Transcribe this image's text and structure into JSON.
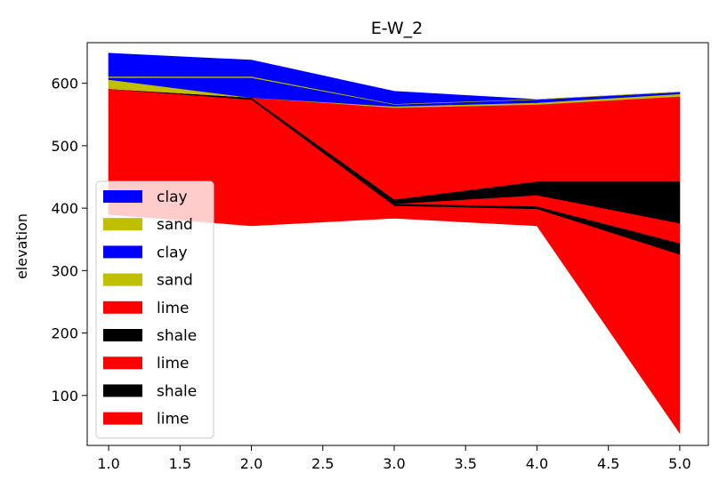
{
  "chart_data": {
    "type": "area",
    "title": "E-W_2",
    "xlabel": "",
    "ylabel": "elevation",
    "xlim": [
      0.85,
      5.2
    ],
    "ylim": [
      20,
      665
    ],
    "x_ticks": [
      1.0,
      1.5,
      2.0,
      2.5,
      3.0,
      3.5,
      4.0,
      4.5,
      5.0
    ],
    "x_tick_labels": [
      "1.0",
      "1.5",
      "2.0",
      "2.5",
      "3.0",
      "3.5",
      "4.0",
      "4.5",
      "5.0"
    ],
    "y_ticks": [
      100,
      200,
      300,
      400,
      500,
      600
    ],
    "y_tick_labels": [
      "100",
      "200",
      "300",
      "400",
      "500",
      "600"
    ],
    "grid": false,
    "legend_position": "lower-left",
    "x": [
      1.0,
      2.0,
      3.0,
      4.0,
      5.0
    ],
    "series": [
      {
        "name": "clay",
        "color": "#0000ff",
        "top": [
          648,
          637,
          587,
          574,
          586
        ],
        "bottom": [
          610,
          610,
          566,
          574,
          586
        ]
      },
      {
        "name": "sand",
        "color": "#bfbf00",
        "top": [
          610,
          610,
          566,
          574,
          586
        ],
        "bottom": [
          608,
          608,
          565,
          573,
          585
        ]
      },
      {
        "name": "clay",
        "color": "#0000ff",
        "top": [
          608,
          608,
          565,
          573,
          585
        ],
        "bottom": [
          605,
          576,
          562,
          568,
          582
        ]
      },
      {
        "name": "sand",
        "color": "#bfbf00",
        "top": [
          605,
          576,
          562,
          568,
          582
        ],
        "bottom": [
          590,
          576,
          560,
          565,
          578
        ]
      },
      {
        "name": "lime",
        "color": "#ff0000",
        "top": [
          590,
          576,
          560,
          565,
          578
        ],
        "bottom": [
          590,
          576,
          413,
          442,
          442
        ]
      },
      {
        "name": "shale",
        "color": "#000000",
        "top": [
          590,
          576,
          413,
          442,
          442
        ],
        "bottom": [
          590,
          576,
          406,
          420,
          375
        ]
      },
      {
        "name": "lime",
        "color": "#ff0000",
        "top": [
          590,
          576,
          406,
          420,
          375
        ],
        "bottom": [
          590,
          576,
          406,
          402,
          343
        ]
      },
      {
        "name": "shale",
        "color": "#000000",
        "top": [
          590,
          576,
          406,
          402,
          343
        ],
        "bottom": [
          590,
          573,
          403,
          398,
          325
        ]
      },
      {
        "name": "lime",
        "color": "#ff0000",
        "top": [
          590,
          573,
          403,
          398,
          325
        ],
        "bottom": [
          390,
          372,
          384,
          372,
          40
        ]
      }
    ]
  }
}
